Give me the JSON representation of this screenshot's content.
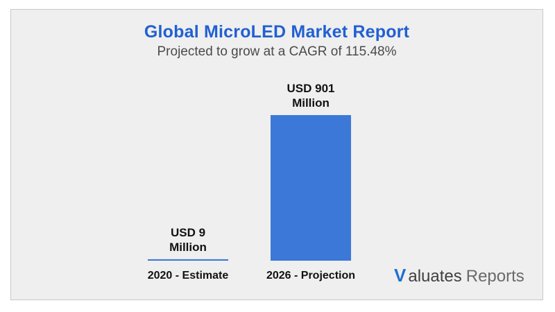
{
  "colors": {
    "title": "#2160d1",
    "bar": "#3c78d8",
    "text": "#111111"
  },
  "logo": {
    "mark": "V",
    "word1": "aluates",
    "word2": "Reports"
  },
  "chart_data": {
    "type": "bar",
    "title": "Global MicroLED Market Report",
    "subtitle": "Projected to grow at a CAGR of 115.48%",
    "categories": [
      "2020 - Estimate",
      "2026 - Projection"
    ],
    "values": [
      9,
      901
    ],
    "value_labels": [
      [
        "USD 9",
        "Million"
      ],
      [
        "USD 901",
        "Million"
      ]
    ],
    "unit": "USD Million",
    "ylim": [
      0,
      901
    ],
    "grid": false,
    "legend": "none"
  }
}
